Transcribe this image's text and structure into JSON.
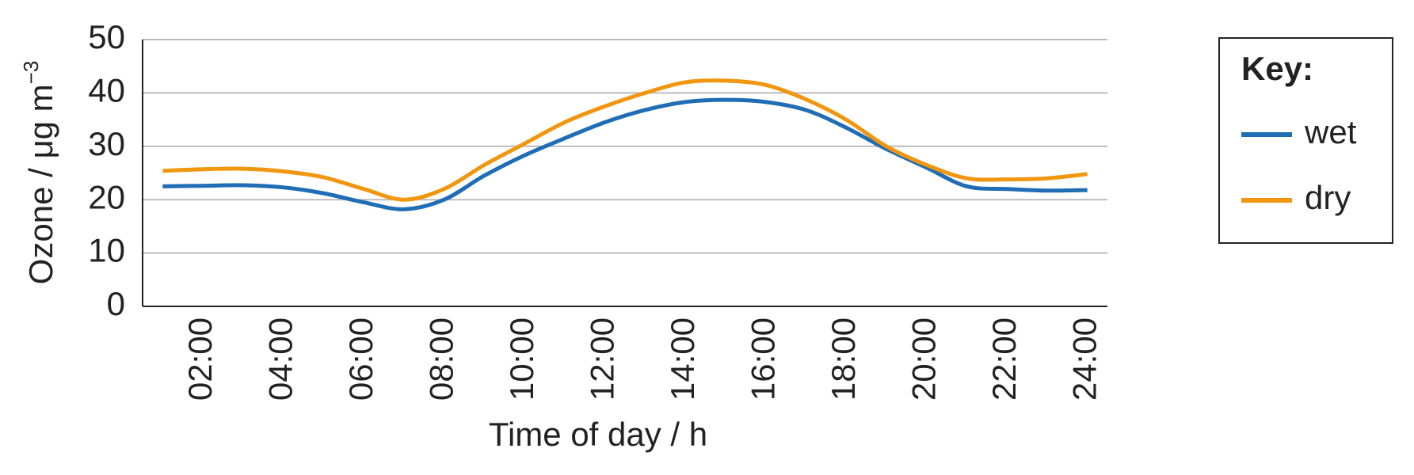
{
  "chart_data": {
    "type": "line",
    "xlabel": "Time of day / h",
    "ylabel": {
      "text": "Ozone / μg m",
      "sup": "−3"
    },
    "legend_title": "Key:",
    "legend": "right",
    "grid": true,
    "categories": [
      null,
      "02:00",
      null,
      "04:00",
      null,
      "06:00",
      null,
      "08:00",
      null,
      "10:00",
      null,
      "12:00",
      null,
      "14:00",
      null,
      "16:00",
      null,
      "18:00",
      null,
      "20:00",
      null,
      "22:00",
      null,
      "24:00"
    ],
    "ylim": [
      0,
      50
    ],
    "yticks": [
      0,
      10,
      20,
      30,
      40,
      50
    ],
    "series": [
      {
        "name": "wet",
        "color": "#1f6db5",
        "values": [
          22.5,
          22.6,
          22.7,
          22.3,
          21.2,
          19.5,
          18.2,
          20.0,
          24.5,
          28.3,
          31.5,
          34.5,
          36.8,
          38.3,
          38.7,
          38.3,
          36.8,
          33.5,
          29.5,
          26.0,
          22.5,
          22.0,
          21.7,
          21.8
        ]
      },
      {
        "name": "dry",
        "color": "#f0960f",
        "values": [
          25.4,
          25.7,
          25.8,
          25.3,
          24.2,
          22.0,
          20.0,
          22.0,
          26.5,
          30.5,
          34.5,
          37.5,
          40.0,
          42.0,
          42.3,
          41.5,
          38.8,
          35.0,
          30.0,
          26.5,
          24.0,
          23.8,
          24.0,
          24.8
        ]
      }
    ]
  }
}
